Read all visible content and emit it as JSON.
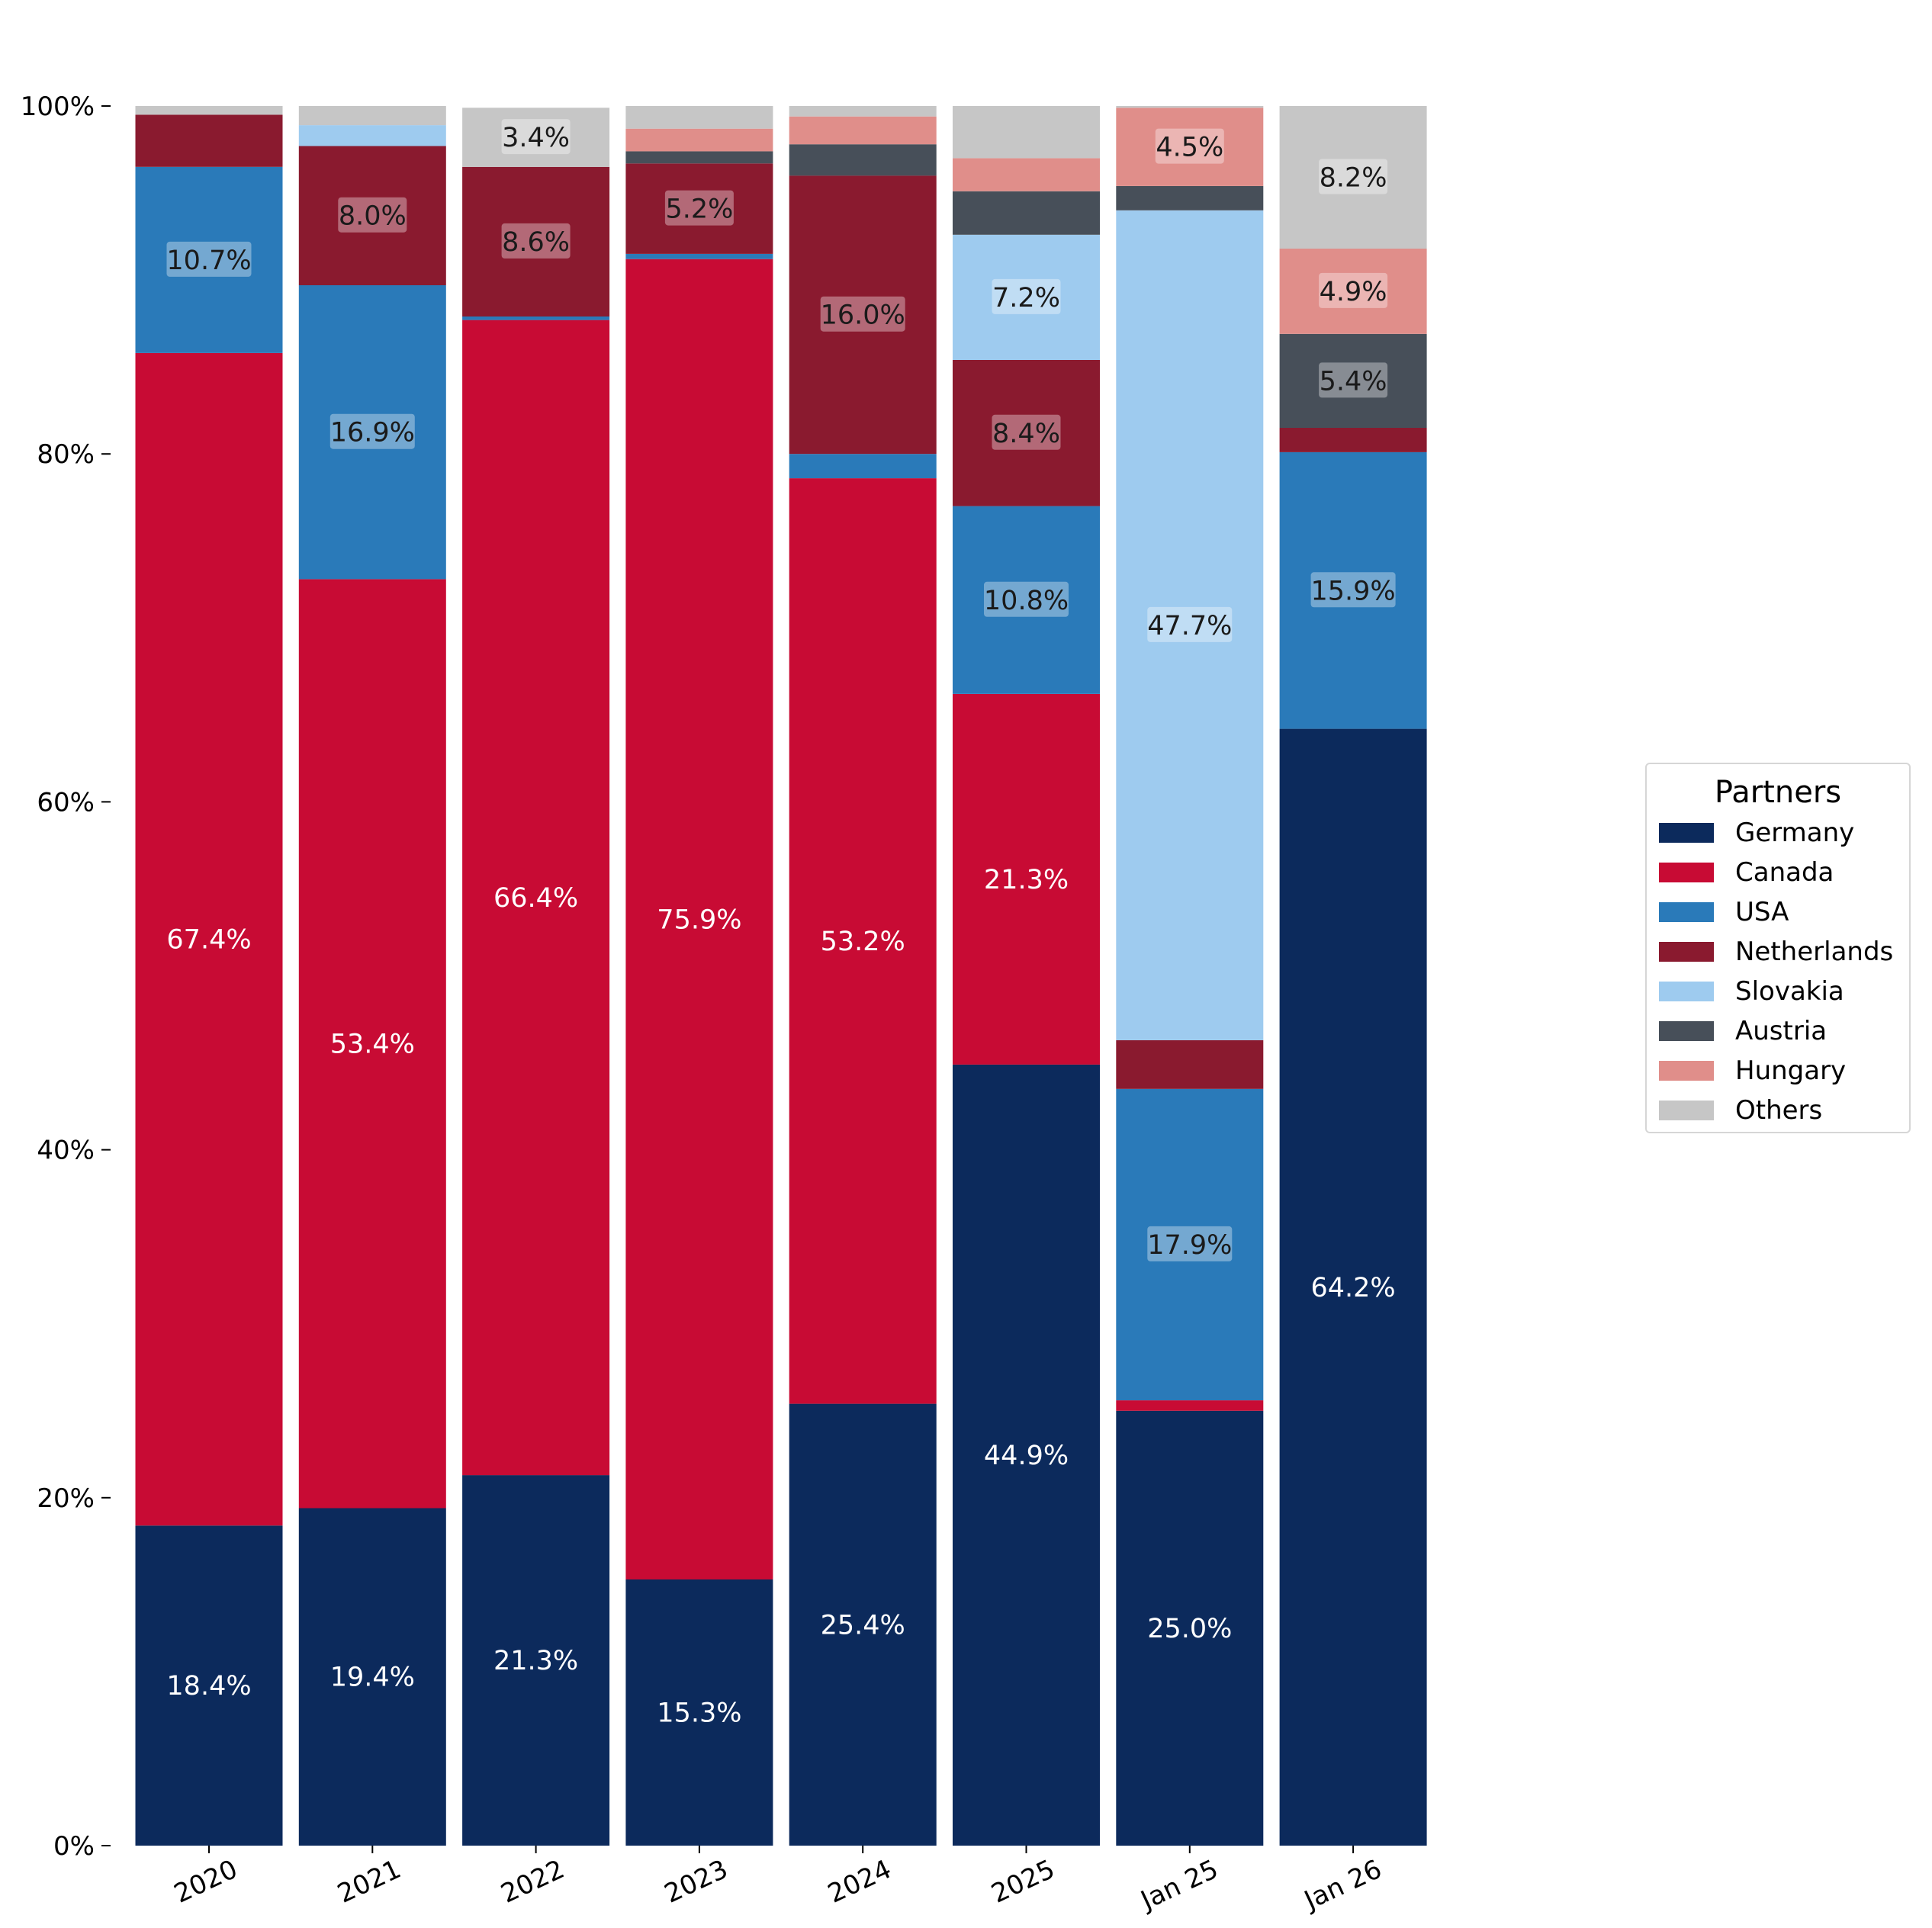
{
  "chart_data": {
    "type": "bar",
    "stacked": true,
    "categories": [
      "2020",
      "2021",
      "2022",
      "2023",
      "2024",
      "2025",
      "Jan 25",
      "Jan 26"
    ],
    "ylim": [
      0,
      100
    ],
    "yticks": [
      "0%",
      "20%",
      "40%",
      "60%",
      "80%",
      "100%"
    ],
    "title": "",
    "xlabel": "",
    "ylabel": "",
    "grid": false,
    "legend": {
      "title": "Partners",
      "placement": "right"
    },
    "series": [
      {
        "name": "Germany",
        "color": "#0c2a5c",
        "label_color": "light",
        "values": [
          18.4,
          19.4,
          21.3,
          15.3,
          25.4,
          44.9,
          25.0,
          64.2
        ],
        "labels": [
          "18.4%",
          "19.4%",
          "21.3%",
          "15.3%",
          "25.4%",
          "44.9%",
          "25.0%",
          "64.2%"
        ]
      },
      {
        "name": "Canada",
        "color": "#c80b34",
        "label_color": "light",
        "values": [
          67.4,
          53.4,
          66.4,
          75.9,
          53.2,
          21.3,
          0.6,
          0.0
        ],
        "labels": [
          "67.4%",
          "53.4%",
          "66.4%",
          "75.9%",
          "53.2%",
          "21.3%",
          "",
          ""
        ]
      },
      {
        "name": "USA",
        "color": "#2a7ab9",
        "label_color": "dark",
        "values": [
          10.7,
          16.9,
          0.2,
          0.3,
          1.4,
          10.8,
          17.9,
          15.9
        ],
        "labels": [
          "10.7%",
          "16.9%",
          "",
          "",
          "",
          "10.8%",
          "17.9%",
          "15.9%"
        ]
      },
      {
        "name": "Netherlands",
        "color": "#8a1a2f",
        "label_color": "dark",
        "values": [
          3.0,
          8.0,
          8.6,
          5.2,
          16.0,
          8.4,
          2.8,
          1.4
        ],
        "labels": [
          "",
          "8.0%",
          "8.6%",
          "5.2%",
          "16.0%",
          "8.4%",
          "",
          ""
        ]
      },
      {
        "name": "Slovakia",
        "color": "#9ecbef",
        "label_color": "dark",
        "values": [
          0.0,
          1.2,
          0.0,
          0.0,
          0.0,
          7.2,
          47.7,
          0.0
        ],
        "labels": [
          "",
          "",
          "",
          "",
          "",
          "7.2%",
          "47.7%",
          ""
        ]
      },
      {
        "name": "Austria",
        "color": "#474f59",
        "label_color": "dark",
        "values": [
          0.0,
          0.0,
          0.0,
          0.7,
          1.8,
          2.5,
          1.4,
          5.4
        ],
        "labels": [
          "",
          "",
          "",
          "",
          "",
          "",
          "",
          "5.4%"
        ]
      },
      {
        "name": "Hungary",
        "color": "#e08e8a",
        "label_color": "dark",
        "values": [
          0.0,
          0.0,
          0.0,
          1.3,
          1.6,
          1.9,
          4.5,
          4.9
        ],
        "labels": [
          "",
          "",
          "",
          "",
          "",
          "",
          "4.5%",
          "4.9%"
        ]
      },
      {
        "name": "Others",
        "color": "#c6c6c6",
        "label_color": "dark",
        "values": [
          0.5,
          1.1,
          3.4,
          1.3,
          0.6,
          3.0,
          0.1,
          8.2
        ],
        "labels": [
          "",
          "",
          "3.4%",
          "",
          "",
          "",
          "",
          "8.2%"
        ]
      }
    ]
  }
}
